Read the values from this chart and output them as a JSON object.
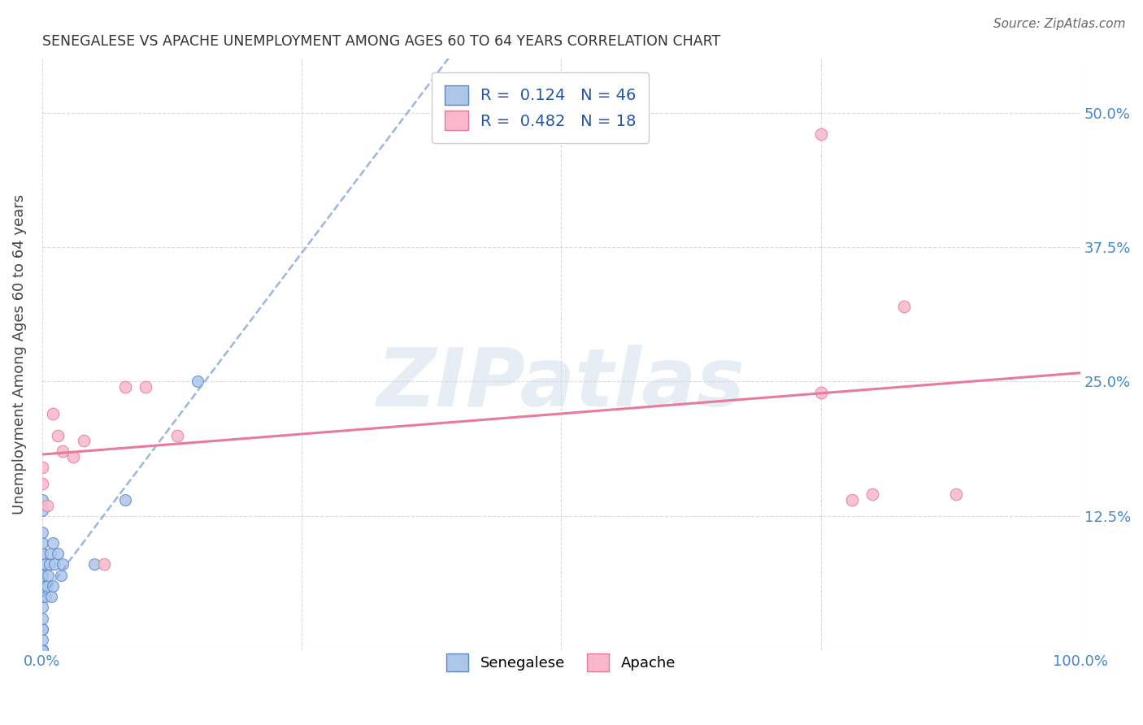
{
  "title": "SENEGALESE VS APACHE UNEMPLOYMENT AMONG AGES 60 TO 64 YEARS CORRELATION CHART",
  "source": "Source: ZipAtlas.com",
  "ylabel": "Unemployment Among Ages 60 to 64 years",
  "xlim": [
    0,
    1.0
  ],
  "ylim": [
    0,
    0.55
  ],
  "xticks": [
    0.0,
    0.25,
    0.5,
    0.75,
    1.0
  ],
  "xticklabels": [
    "0.0%",
    "",
    "",
    "",
    "100.0%"
  ],
  "yticks": [
    0.0,
    0.125,
    0.25,
    0.375,
    0.5
  ],
  "yticklabels": [
    "",
    "12.5%",
    "25.0%",
    "37.5%",
    "50.0%"
  ],
  "watermark": "ZIPatlas",
  "senegalese_color": "#aec6e8",
  "senegalese_edge": "#5588cc",
  "apache_color": "#f9b8cb",
  "apache_edge": "#e8789a",
  "trendline_senegalese_color": "#88aadd",
  "trendline_apache_color": "#e87a9a",
  "R_senegalese": 0.124,
  "N_senegalese": 46,
  "R_apache": 0.482,
  "N_apache": 18,
  "senegalese_x": [
    0.0,
    0.0,
    0.0,
    0.0,
    0.0,
    0.0,
    0.0,
    0.0,
    0.0,
    0.0,
    0.0,
    0.0,
    0.0,
    0.0,
    0.0,
    0.0,
    0.0,
    0.0,
    0.0,
    0.0,
    0.0,
    0.0,
    0.0,
    0.0,
    0.0,
    0.0,
    0.0,
    0.0,
    0.0,
    0.0,
    0.003,
    0.003,
    0.005,
    0.006,
    0.007,
    0.008,
    0.009,
    0.01,
    0.01,
    0.012,
    0.015,
    0.018,
    0.02,
    0.05,
    0.08,
    0.15
  ],
  "senegalese_y": [
    0.0,
    0.0,
    0.0,
    0.0,
    0.0,
    0.0,
    0.0,
    0.0,
    0.0,
    0.0,
    0.01,
    0.02,
    0.02,
    0.03,
    0.04,
    0.05,
    0.05,
    0.06,
    0.06,
    0.07,
    0.07,
    0.07,
    0.08,
    0.08,
    0.09,
    0.09,
    0.1,
    0.11,
    0.13,
    0.14,
    0.05,
    0.08,
    0.06,
    0.07,
    0.08,
    0.09,
    0.05,
    0.06,
    0.1,
    0.08,
    0.09,
    0.07,
    0.08,
    0.08,
    0.14,
    0.25
  ],
  "apache_x": [
    0.0,
    0.0,
    0.005,
    0.01,
    0.015,
    0.02,
    0.03,
    0.04,
    0.06,
    0.08,
    0.1,
    0.13,
    0.75,
    0.75,
    0.78,
    0.8,
    0.83,
    0.88
  ],
  "apache_y": [
    0.155,
    0.17,
    0.135,
    0.22,
    0.2,
    0.185,
    0.18,
    0.195,
    0.08,
    0.245,
    0.245,
    0.2,
    0.48,
    0.24,
    0.14,
    0.145,
    0.32,
    0.145
  ]
}
